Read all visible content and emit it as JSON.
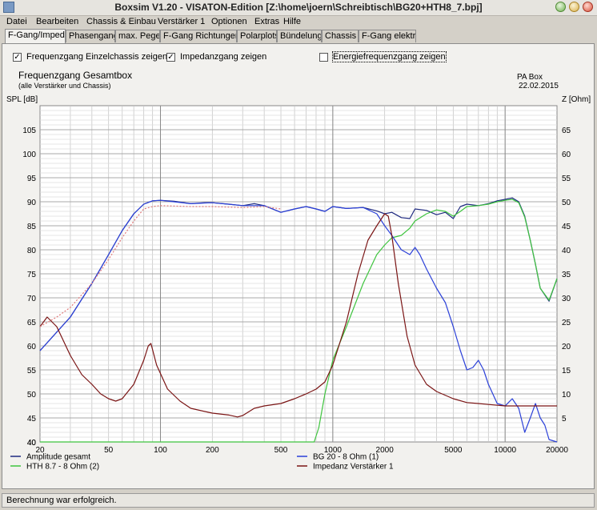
{
  "window": {
    "title": "Boxsim V1.20 - VISATON-Edition [Z:\\home\\joern\\Schreibtisch\\BG20+HTH8_7.bpj]"
  },
  "menu": [
    "Datei",
    "Bearbeiten",
    "Chassis & Einbau",
    "Verstärker 1",
    "Optionen",
    "Extras",
    "Hilfe"
  ],
  "tabs": [
    "F-Gang/Imped",
    "Phasengang",
    "max. Pegel",
    "F-Gang Richtungen",
    "Polarplots",
    "Bündelung",
    "Chassis",
    "F-Gang elektr."
  ],
  "options": [
    {
      "label": "Frequenzgang Einzelchassis zeigen",
      "checked": "✓"
    },
    {
      "label": "Impedanzgang zeigen",
      "checked": "✓"
    },
    {
      "label": "Energiefrequenzgang zeigen",
      "checked": ""
    }
  ],
  "status": "Berechnung war erfolgreich.",
  "chart_data": {
    "type": "line",
    "title": "Frequenzgang Gesamtbox",
    "subtitle": "(alle Verstärker und Chassis)",
    "project": "PA Box",
    "date": "22.02.2015",
    "ylabel_left": "SPL [dB]",
    "ylabel_right": "Z [Ohm]",
    "xscale": "log",
    "xlim": [
      20,
      20000
    ],
    "ylim_left": [
      40,
      110
    ],
    "ylim_right": [
      0,
      70
    ],
    "x_ticks": [
      20,
      50,
      100,
      200,
      500,
      1000,
      2000,
      5000,
      10000,
      20000
    ],
    "x_tick_labels": [
      "20",
      "50",
      "100",
      "200",
      "500",
      "1000",
      "2000",
      "5000",
      "10000",
      "20000"
    ],
    "y_ticks_left": [
      40,
      45,
      50,
      55,
      60,
      65,
      70,
      75,
      80,
      85,
      90,
      95,
      100,
      105
    ],
    "y_ticks_right": [
      5,
      10,
      15,
      20,
      25,
      30,
      35,
      40,
      45,
      50,
      55,
      60,
      65
    ],
    "grid": true,
    "legend": [
      {
        "label": "Amplitude gesamt",
        "color": "#1f2a80"
      },
      {
        "label": "HTH 8.7 - 8 Ohm (2)",
        "color": "#3ec43e"
      },
      {
        "label": "BG 20 - 8 Ohm          (1)",
        "color": "#2b40d8"
      },
      {
        "label": "Impedanz Verstärker 1",
        "color": "#7a1414"
      }
    ],
    "series": [
      {
        "name": "Amplitude gesamt",
        "axis": "left",
        "color": "#1f2a80",
        "x": [
          20,
          30,
          40,
          50,
          60,
          70,
          80,
          90,
          100,
          120,
          150,
          180,
          200,
          250,
          300,
          350,
          400,
          500,
          600,
          700,
          800,
          900,
          1000,
          1200,
          1500,
          1800,
          2000,
          2200,
          2500,
          2800,
          3000,
          3500,
          4000,
          4500,
          5000,
          5500,
          6000,
          7000,
          8000,
          9000,
          10000,
          11000,
          12000,
          13000,
          14000,
          15000,
          16000,
          18000,
          20000
        ],
        "y": [
          59,
          66,
          73,
          79,
          84,
          87.5,
          89.5,
          90.2,
          90.3,
          90.1,
          89.6,
          89.8,
          89.8,
          89.5,
          89.2,
          89.6,
          89.2,
          87.8,
          88.5,
          89,
          88.5,
          88,
          89,
          88.6,
          88.8,
          88.1,
          87.5,
          87.8,
          86.7,
          86.5,
          88.5,
          88.2,
          87.3,
          87.8,
          86.5,
          89,
          89.5,
          89.2,
          89.6,
          90.2,
          90.5,
          90.8,
          90,
          87,
          82,
          77,
          72,
          69.3,
          74
        ]
      },
      {
        "name": "HTH 8.7 - 8 Ohm (2)",
        "axis": "left",
        "color": "#3ec43e",
        "x": [
          20,
          700,
          780,
          830,
          900,
          1000,
          1200,
          1500,
          1800,
          2000,
          2200,
          2500,
          2800,
          3000,
          3500,
          4000,
          4500,
          5000,
          5500,
          6000,
          7000,
          8000,
          9000,
          10000,
          11000,
          12000,
          13000,
          14000,
          15000,
          16000,
          18000,
          20000
        ],
        "y": [
          40,
          40,
          40,
          43,
          50,
          57,
          64,
          73,
          79,
          81,
          82.5,
          83,
          84.5,
          86,
          87.5,
          88.3,
          88,
          87,
          88,
          89,
          89.2,
          89.5,
          90,
          90.3,
          90.5,
          89.8,
          86.8,
          82,
          77,
          72,
          69.5,
          74
        ]
      },
      {
        "name": "BG 20 - 8 Ohm          (1)",
        "axis": "left",
        "color": "#2b40d8",
        "x": [
          20,
          30,
          40,
          50,
          60,
          70,
          80,
          90,
          100,
          150,
          200,
          300,
          400,
          500,
          600,
          700,
          800,
          900,
          1000,
          1200,
          1500,
          1800,
          2000,
          2200,
          2500,
          2800,
          3000,
          3200,
          3500,
          4000,
          4500,
          5000,
          5500,
          6000,
          6500,
          7000,
          7500,
          8000,
          9000,
          10000,
          11000,
          12000,
          13000,
          14000,
          15000,
          16000,
          17000,
          18000,
          20000
        ],
        "y": [
          59,
          66,
          73,
          79,
          84,
          87.5,
          89.5,
          90.2,
          90.3,
          89.6,
          89.8,
          89.2,
          89.2,
          87.8,
          88.5,
          89,
          88.5,
          88,
          89,
          88.6,
          88.8,
          87.5,
          85,
          83,
          80,
          79,
          80.5,
          79,
          76,
          72,
          69,
          64,
          59,
          55,
          55.5,
          57,
          55,
          52,
          48,
          47.5,
          49,
          47,
          42,
          45,
          48,
          45,
          43.5,
          40.5,
          40
        ]
      },
      {
        "name": "Impedanz Verstärker 1",
        "axis": "right",
        "color": "#7a1414",
        "x": [
          20,
          22,
          25,
          30,
          35,
          40,
          45,
          50,
          55,
          60,
          70,
          80,
          85,
          88,
          95,
          110,
          130,
          150,
          200,
          250,
          280,
          300,
          350,
          400,
          500,
          600,
          700,
          800,
          900,
          1000,
          1200,
          1400,
          1600,
          1800,
          2000,
          2100,
          2200,
          2400,
          2700,
          3000,
          3500,
          4000,
          5000,
          6000,
          7000,
          8000,
          10000,
          12000,
          15000,
          20000
        ],
        "y": [
          24,
          26,
          24,
          18,
          14,
          12,
          10,
          9,
          8.5,
          9,
          12,
          17,
          20,
          20.5,
          16,
          11,
          8.5,
          7,
          6,
          5.6,
          5.2,
          5.5,
          7,
          7.5,
          8,
          9,
          10,
          11,
          12.5,
          16,
          25,
          35,
          42,
          45,
          47.5,
          47,
          43,
          33,
          22,
          16,
          12,
          10.5,
          9,
          8.2,
          8,
          7.8,
          7.5,
          7.5,
          7.5,
          7.5
        ]
      },
      {
        "name": "",
        "axis": "left",
        "color": "#e07a7a",
        "dashed": true,
        "x": [
          20,
          25,
          30,
          40,
          50,
          60,
          70,
          80,
          90,
          100,
          150,
          200,
          300,
          400,
          500
        ],
        "y": [
          64,
          66,
          68,
          73,
          78,
          82.5,
          86,
          88.5,
          89,
          89.2,
          89,
          89,
          88.8,
          89,
          88.5
        ]
      }
    ]
  }
}
